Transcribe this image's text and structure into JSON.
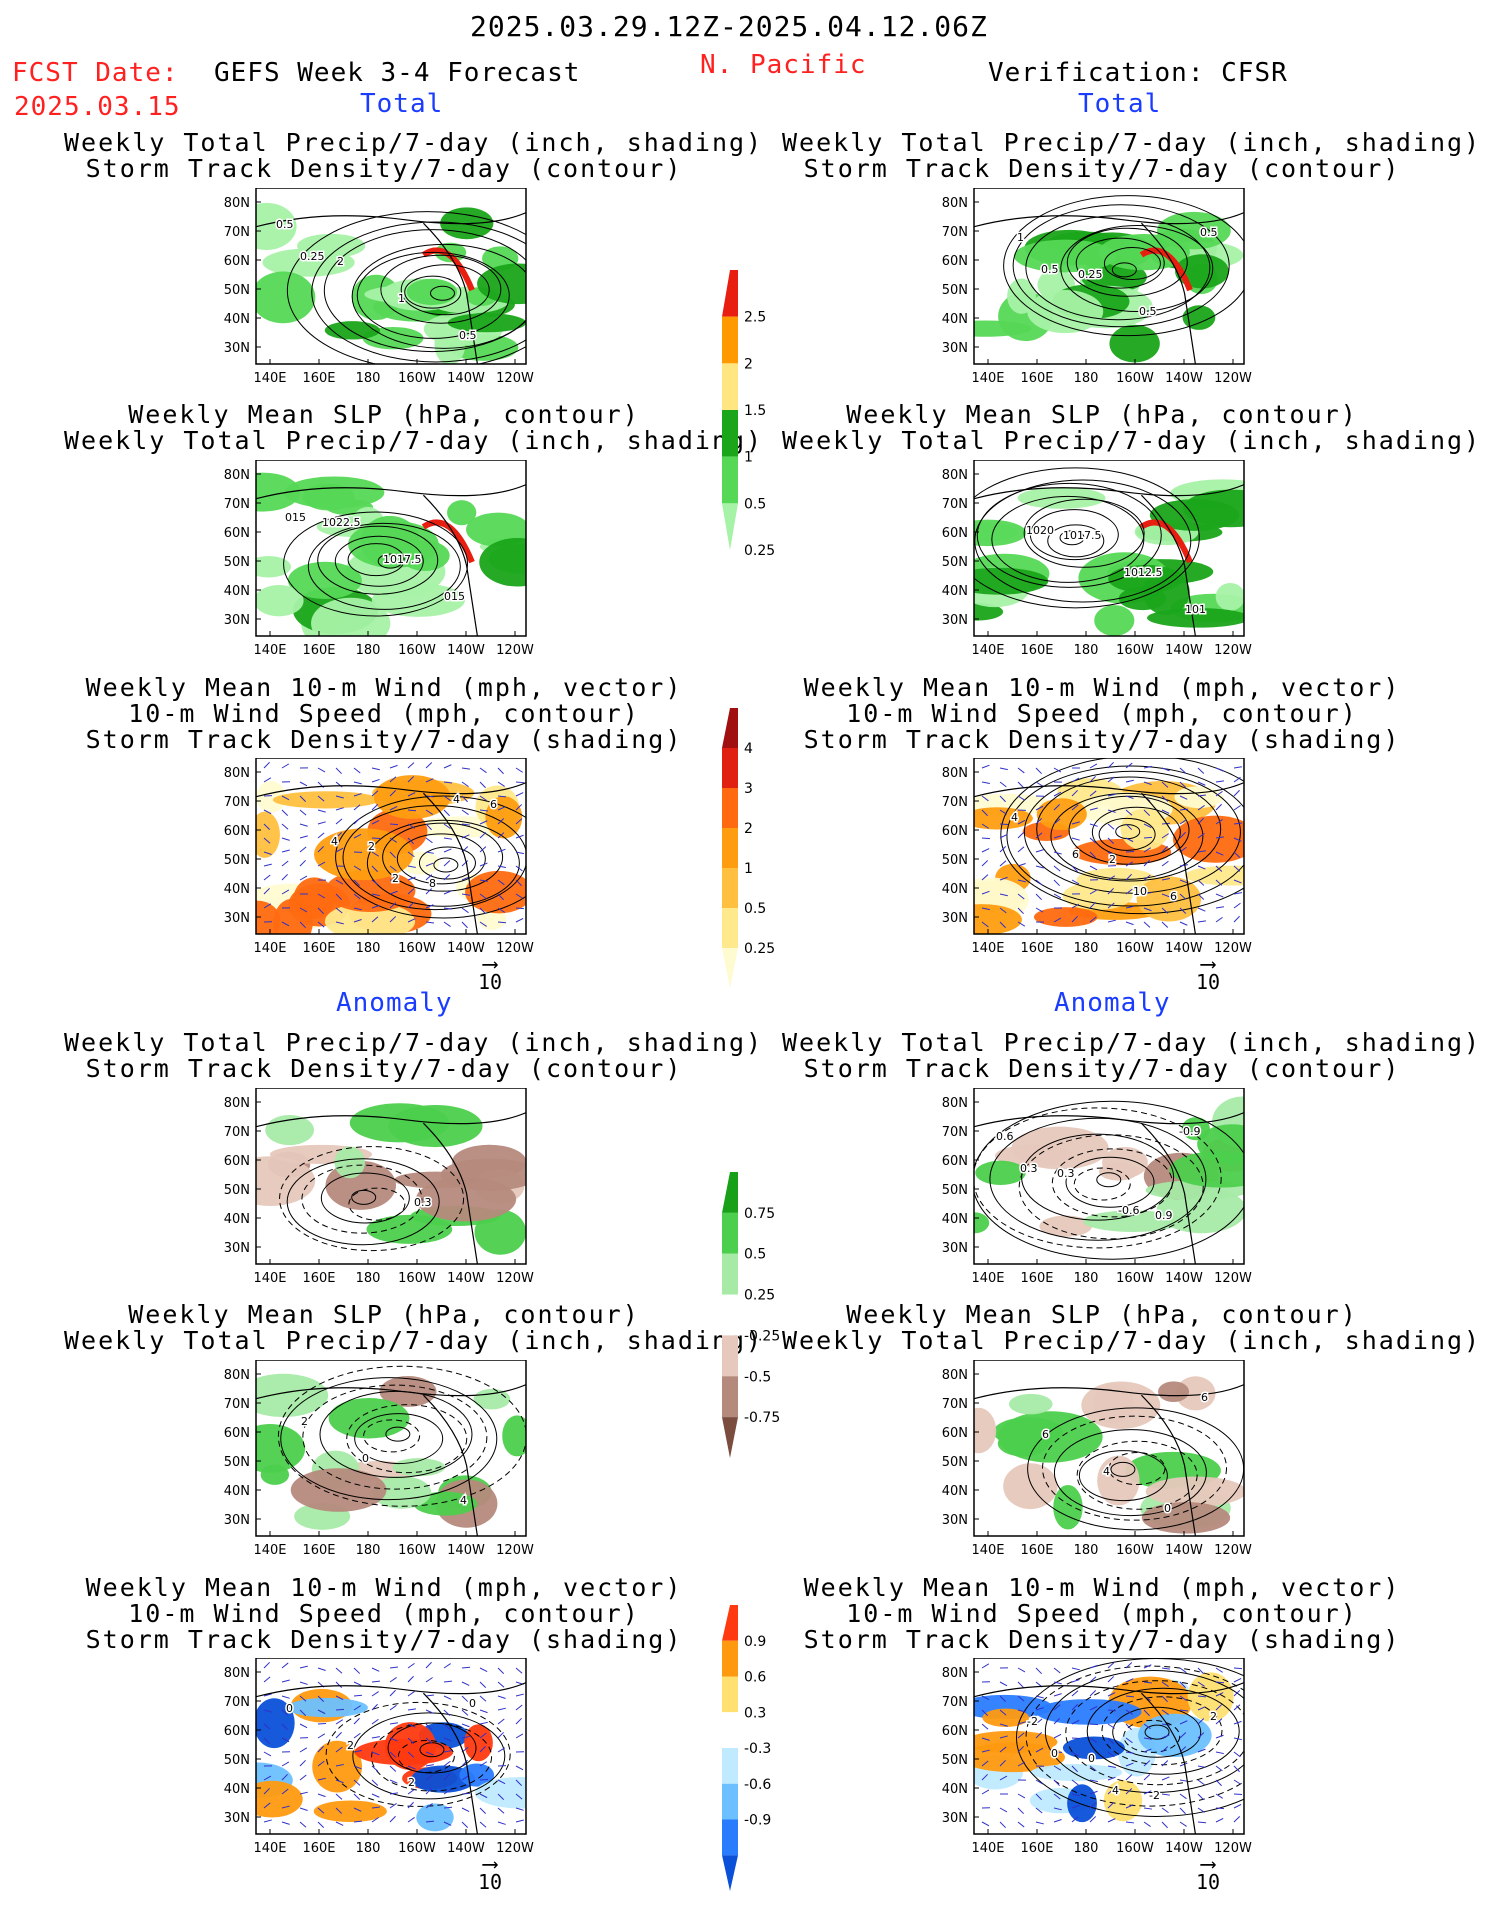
{
  "header": {
    "date_range": "2025.03.29.12Z-2025.04.12.06Z",
    "fcst_label": "FCST Date:",
    "fcst_date": "2025.03.15",
    "model": "GEFS Week 3-4 Forecast",
    "region": "N. Pacific",
    "verification": "Verification: CFSR",
    "total_label": "Total",
    "anomaly_label": "Anomaly"
  },
  "axes": {
    "lat_ticks": [
      "80N",
      "70N",
      "60N",
      "50N",
      "40N",
      "30N"
    ],
    "lon_ticks": [
      "140E",
      "160E",
      "180",
      "160W",
      "140W",
      "120W"
    ]
  },
  "panels": [
    {
      "id": "p1",
      "col": "left",
      "t1": "Weekly Total Precip/7-day (inch, shading)",
      "t2": "Storm Track Density/7-day (contour)",
      "t3": "",
      "kind": "precip",
      "labels": [
        "0.5",
        "2",
        "1",
        "0.5",
        "0.25"
      ]
    },
    {
      "id": "p2",
      "col": "right",
      "t1": "Weekly Total Precip/7-day (inch, shading)",
      "t2": "Storm Track Density/7-day (contour)",
      "t3": "",
      "kind": "precip",
      "labels": [
        "1",
        "0.25",
        "0.5",
        "0.5",
        "0.5"
      ]
    },
    {
      "id": "p3",
      "col": "left",
      "t1": "Weekly Mean SLP (hPa, contour)",
      "t2": "Weekly Total Precip/7-day (inch, shading)",
      "t3": "",
      "kind": "precip",
      "labels": [
        "1022.5",
        "1017.5",
        "015",
        "015"
      ]
    },
    {
      "id": "p4",
      "col": "right",
      "t1": "Weekly Mean SLP (hPa, contour)",
      "t2": "Weekly Total Precip/7-day (inch, shading)",
      "t3": "",
      "kind": "precip",
      "labels": [
        "1017.5",
        "1012.5",
        "101",
        "1020"
      ]
    },
    {
      "id": "p5",
      "col": "left",
      "t1": "Weekly Mean 10-m Wind (mph, vector)",
      "t2": "10-m Wind Speed (mph, contour)",
      "t3": "Storm Track Density/7-day (shading)",
      "kind": "storm",
      "labels": [
        "2",
        "8",
        "6",
        "4",
        "2",
        "4"
      ]
    },
    {
      "id": "p6",
      "col": "right",
      "t1": "Weekly Mean 10-m Wind (mph, vector)",
      "t2": "10-m Wind Speed (mph, contour)",
      "t3": "Storm Track Density/7-day (shading)",
      "kind": "storm",
      "labels": [
        "2",
        "6",
        "4",
        "6",
        "10"
      ]
    },
    {
      "id": "p7",
      "col": "left",
      "t1": "Weekly Total Precip/7-day (inch, shading)",
      "t2": "Storm Track Density/7-day (contour)",
      "t3": "",
      "kind": "precip_anom",
      "labels": [
        "0.3"
      ]
    },
    {
      "id": "p8",
      "col": "right",
      "t1": "Weekly Total Precip/7-day (inch, shading)",
      "t2": "Storm Track Density/7-day (contour)",
      "t3": "",
      "kind": "precip_anom",
      "labels": [
        "0.9",
        "0.6",
        "0.3",
        "-0.6",
        "-0.9",
        "0.3"
      ]
    },
    {
      "id": "p9",
      "col": "left",
      "t1": "Weekly Mean SLP (hPa, contour)",
      "t2": "Weekly Total Precip/7-day (inch, shading)",
      "t3": "",
      "kind": "precip_anom",
      "labels": [
        "4",
        "2",
        "0"
      ]
    },
    {
      "id": "p10",
      "col": "right",
      "t1": "Weekly Mean SLP (hPa, contour)",
      "t2": "Weekly Total Precip/7-day (inch, shading)",
      "t3": "",
      "kind": "precip_anom",
      "labels": [
        "6",
        "6",
        "4",
        "0"
      ]
    },
    {
      "id": "p11",
      "col": "left",
      "t1": "Weekly Mean 10-m Wind (mph, vector)",
      "t2": "10-m Wind Speed (mph, contour)",
      "t3": "Storm Track Density/7-day (shading)",
      "kind": "storm_anom",
      "labels": [
        "0",
        "2",
        "2",
        "0"
      ]
    },
    {
      "id": "p12",
      "col": "right",
      "t1": "Weekly Mean 10-m Wind (mph, vector)",
      "t2": "10-m Wind Speed (mph, contour)",
      "t3": "Storm Track Density/7-day (shading)",
      "kind": "storm_anom",
      "labels": [
        "-2",
        "0",
        "-2",
        "2",
        "0",
        "4"
      ]
    }
  ],
  "scales": [
    {
      "id": "precip",
      "values": [
        "2.5",
        "2",
        "1.5",
        "1",
        "0.5",
        "0.25"
      ],
      "colors": [
        "#e81e10",
        "#ff9900",
        "#ffe680",
        "#1aa51a",
        "#55d855",
        "#a6f2a6"
      ]
    },
    {
      "id": "storm",
      "values": [
        "4",
        "3",
        "2",
        "1",
        "0.5",
        "0.25"
      ],
      "colors": [
        "#a01010",
        "#e02010",
        "#ff6a10",
        "#ff9d10",
        "#ffc040",
        "#ffe98c",
        "#fffbd0"
      ]
    },
    {
      "id": "precip_anom",
      "values": [
        "0.75",
        "0.5",
        "0.25",
        "-0.25",
        "-0.5",
        "-0.75"
      ],
      "colors": [
        "#18a018",
        "#4ccf4c",
        "#a6eaa6",
        "#ffffff",
        "#e6c8bc",
        "#b58a7c",
        "#7a4d3f"
      ]
    },
    {
      "id": "storm_anom",
      "values": [
        "0.9",
        "0.6",
        "0.3",
        "-0.3",
        "-0.6",
        "-0.9"
      ],
      "colors": [
        "#ff3a10",
        "#ff9a10",
        "#ffe070",
        "#ffffff",
        "#bfeaff",
        "#6cc0ff",
        "#2a7cff",
        "#0a50d8"
      ]
    }
  ],
  "vector_ref": "10",
  "colors": {
    "header_red": "#ff2020",
    "header_blue": "#1a3cff",
    "contour": "#000000",
    "vector": "#3030c8"
  },
  "chart_data": [
    {
      "type": "heatmap",
      "title": "Weekly Total Precip/7-day (inch, shading) / Storm Track Density/7-day (contour)",
      "panel": "GEFS Total",
      "legend_levels": [
        0.25,
        0.5,
        1,
        1.5,
        2,
        2.5
      ]
    },
    {
      "type": "heatmap",
      "title": "Weekly Total Precip/7-day (inch, shading) / Storm Track Density/7-day (contour)",
      "panel": "CFSR Total",
      "legend_levels": [
        0.25,
        0.5,
        1,
        1.5,
        2,
        2.5
      ]
    },
    {
      "type": "heatmap",
      "title": "Weekly Mean 10-m Wind (mph, vector) / Storm Track Density/7-day (shading)",
      "panel": "Total",
      "legend_levels": [
        0.25,
        0.5,
        1,
        2,
        3,
        4
      ]
    },
    {
      "type": "heatmap",
      "title": "Weekly Total Precip/7-day anomaly (inch)",
      "panel": "Anomaly",
      "legend_levels": [
        -0.75,
        -0.5,
        -0.25,
        0.25,
        0.5,
        0.75
      ]
    },
    {
      "type": "heatmap",
      "title": "Storm Track Density/7-day anomaly",
      "panel": "Anomaly",
      "legend_levels": [
        -0.9,
        -0.6,
        -0.3,
        0.3,
        0.6,
        0.9
      ]
    }
  ]
}
